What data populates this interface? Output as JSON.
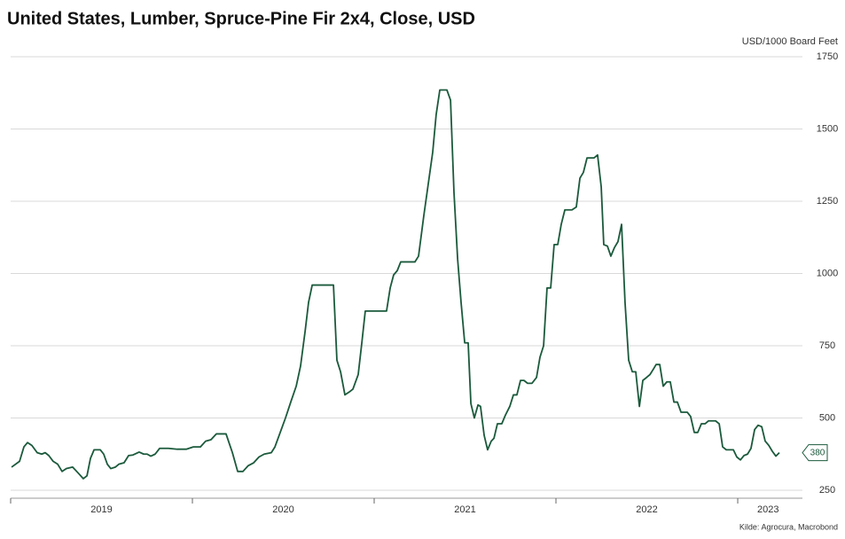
{
  "chart_data": {
    "type": "line",
    "title": "United States, Lumber, Spruce-Pine Fir 2x4, Close, USD",
    "y_axis_label": "USD/1000 Board Feet",
    "source": "Kilde: Agrocura, Macrobond",
    "ylim": [
      250,
      1750
    ],
    "yticks": [
      250,
      500,
      750,
      1000,
      1250,
      1500,
      1750
    ],
    "xlim": [
      2019,
      2023.356
    ],
    "xticks": [
      2019,
      2020,
      2021,
      2022,
      2023
    ],
    "xtick_labels": [
      {
        "value": 2019.5,
        "label": "2019"
      },
      {
        "value": 2020.5,
        "label": "2020"
      },
      {
        "value": 2021.5,
        "label": "2021"
      },
      {
        "value": 2022.5,
        "label": "2022"
      },
      {
        "value": 2023.167,
        "label": "2023"
      }
    ],
    "grid": true,
    "x": [
      2019.005,
      2019.049,
      2019.073,
      2019.093,
      2019.117,
      2019.146,
      2019.171,
      2019.19,
      2019.21,
      2019.234,
      2019.259,
      2019.283,
      2019.307,
      2019.341,
      2019.371,
      2019.4,
      2019.42,
      2019.439,
      2019.459,
      2019.493,
      2019.512,
      2019.532,
      2019.551,
      2019.576,
      2019.595,
      2019.624,
      2019.649,
      2019.673,
      2019.707,
      2019.732,
      2019.751,
      2019.771,
      2019.795,
      2019.82,
      2019.868,
      2019.917,
      2019.966,
      2020.005,
      2020.044,
      2020.073,
      2020.102,
      2020.132,
      2020.185,
      2020.22,
      2020.249,
      2020.278,
      2020.307,
      2020.337,
      2020.366,
      2020.395,
      2020.434,
      2020.454,
      2020.483,
      2020.512,
      2020.541,
      2020.571,
      2020.595,
      2020.62,
      2020.639,
      2020.659,
      2020.678,
      2020.727,
      2020.776,
      2020.795,
      2020.815,
      2020.839,
      2020.863,
      2020.883,
      2020.912,
      2020.932,
      2020.951,
      2020.99,
      2021.029,
      2021.068,
      2021.088,
      2021.107,
      2021.127,
      2021.146,
      2021.195,
      2021.224,
      2021.244,
      2021.273,
      2021.302,
      2021.322,
      2021.341,
      2021.361,
      2021.4,
      2021.42,
      2021.439,
      2021.459,
      2021.478,
      2021.498,
      2021.517,
      2021.532,
      2021.551,
      2021.571,
      2021.585,
      2021.605,
      2021.624,
      2021.644,
      2021.659,
      2021.678,
      2021.702,
      2021.722,
      2021.746,
      2021.766,
      2021.785,
      2021.805,
      2021.824,
      2021.844,
      2021.868,
      2021.893,
      2021.912,
      2021.932,
      2021.951,
      2021.971,
      2021.99,
      2022.01,
      2022.029,
      2022.049,
      2022.088,
      2022.112,
      2022.132,
      2022.151,
      2022.171,
      2022.21,
      2022.229,
      2022.249,
      2022.263,
      2022.283,
      2022.302,
      2022.322,
      2022.341,
      2022.361,
      2022.38,
      2022.4,
      2022.42,
      2022.439,
      2022.459,
      2022.478,
      2022.498,
      2022.517,
      2022.537,
      2022.551,
      2022.571,
      2022.59,
      2022.61,
      2022.629,
      2022.649,
      2022.668,
      2022.688,
      2022.722,
      2022.741,
      2022.761,
      2022.78,
      2022.8,
      2022.82,
      2022.839,
      2022.878,
      2022.898,
      2022.917,
      2022.937,
      2022.976,
      2022.995,
      2023.015,
      2023.034,
      2023.054,
      2023.073,
      2023.093,
      2023.112,
      2023.132,
      2023.151,
      2023.171,
      2023.19,
      2023.21,
      2023.229
    ],
    "series": [
      {
        "name": "Close",
        "color": "#1b5a3c",
        "values": [
          330,
          350,
          400,
          415,
          405,
          380,
          375,
          380,
          370,
          350,
          340,
          315,
          325,
          330,
          310,
          290,
          300,
          360,
          390,
          390,
          375,
          340,
          325,
          330,
          340,
          345,
          370,
          372,
          382,
          375,
          375,
          368,
          375,
          395,
          395,
          392,
          392,
          400,
          400,
          420,
          425,
          445,
          445,
          380,
          315,
          315,
          335,
          345,
          365,
          375,
          380,
          400,
          450,
          500,
          555,
          610,
          680,
          800,
          900,
          960,
          960,
          960,
          960,
          700,
          660,
          580,
          590,
          600,
          650,
          760,
          870,
          870,
          870,
          870,
          950,
          995,
          1010,
          1040,
          1040,
          1040,
          1060,
          1200,
          1330,
          1420,
          1550,
          1635,
          1635,
          1600,
          1280,
          1050,
          900,
          760,
          760,
          550,
          500,
          545,
          540,
          440,
          390,
          420,
          430,
          480,
          480,
          510,
          540,
          580,
          580,
          630,
          630,
          620,
          620,
          640,
          710,
          750,
          950,
          950,
          1100,
          1100,
          1170,
          1220,
          1220,
          1230,
          1330,
          1350,
          1400,
          1400,
          1410,
          1300,
          1100,
          1095,
          1060,
          1090,
          1110,
          1170,
          900,
          700,
          660,
          660,
          540,
          630,
          640,
          650,
          670,
          685,
          685,
          610,
          625,
          625,
          555,
          555,
          520,
          520,
          505,
          450,
          450,
          480,
          480,
          490,
          490,
          480,
          400,
          390,
          390,
          365,
          355,
          370,
          375,
          395,
          460,
          475,
          470,
          420,
          405,
          385,
          368,
          380
        ]
      }
    ]
  }
}
